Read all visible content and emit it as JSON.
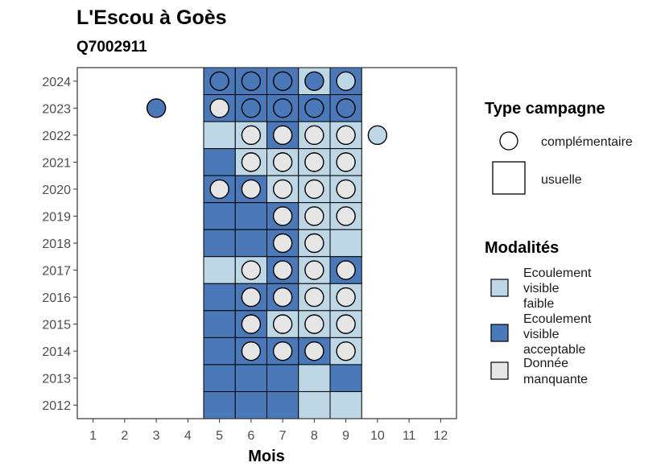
{
  "chart_data": {
    "type": "heatmap",
    "title": "L'Escou à Goès",
    "subtitle": "Q7002911",
    "xlabel": "Mois",
    "ylabel": "",
    "x_ticks": [
      "1",
      "2",
      "3",
      "4",
      "5",
      "6",
      "7",
      "8",
      "9",
      "10",
      "11",
      "12"
    ],
    "y_ticks": [
      "2012",
      "2013",
      "2014",
      "2015",
      "2016",
      "2017",
      "2018",
      "2019",
      "2020",
      "2021",
      "2022",
      "2023",
      "2024"
    ],
    "xlim": [
      0.5,
      12.5
    ],
    "ylim": [
      2011.5,
      2024.5
    ],
    "grid": false,
    "colors": {
      "Ecoulement visible faible": "#bdd7e7",
      "Ecoulement visible acceptable": "#4a78b8",
      "Donnée manquante": "#e6e6e6"
    },
    "legend_shape": {
      "title": "Type campagne",
      "items": [
        "complémentaire",
        "usuelle"
      ]
    },
    "legend_fill": {
      "title": "Modalités",
      "items": [
        {
          "label": "Ecoulement visible faible",
          "lines": [
            "Ecoulement",
            "visible",
            "faible"
          ]
        },
        {
          "label": "Ecoulement visible acceptable",
          "lines": [
            "Ecoulement",
            "visible",
            "acceptable"
          ]
        },
        {
          "label": "Donnée manquante",
          "lines": [
            "Donnée",
            "manquante"
          ]
        }
      ]
    },
    "usuelle": [
      {
        "year": 2024,
        "month": 5,
        "value": "Ecoulement visible acceptable"
      },
      {
        "year": 2024,
        "month": 6,
        "value": "Ecoulement visible acceptable"
      },
      {
        "year": 2024,
        "month": 7,
        "value": "Ecoulement visible acceptable"
      },
      {
        "year": 2024,
        "month": 8,
        "value": "Ecoulement visible faible"
      },
      {
        "year": 2024,
        "month": 9,
        "value": "Ecoulement visible acceptable"
      },
      {
        "year": 2023,
        "month": 5,
        "value": "Ecoulement visible acceptable"
      },
      {
        "year": 2023,
        "month": 6,
        "value": "Ecoulement visible acceptable"
      },
      {
        "year": 2023,
        "month": 7,
        "value": "Ecoulement visible acceptable"
      },
      {
        "year": 2023,
        "month": 8,
        "value": "Ecoulement visible acceptable"
      },
      {
        "year": 2023,
        "month": 9,
        "value": "Ecoulement visible acceptable"
      },
      {
        "year": 2022,
        "month": 5,
        "value": "Ecoulement visible faible"
      },
      {
        "year": 2022,
        "month": 6,
        "value": "Ecoulement visible faible"
      },
      {
        "year": 2022,
        "month": 7,
        "value": "Ecoulement visible acceptable"
      },
      {
        "year": 2022,
        "month": 8,
        "value": "Ecoulement visible faible"
      },
      {
        "year": 2022,
        "month": 9,
        "value": "Ecoulement visible faible"
      },
      {
        "year": 2021,
        "month": 5,
        "value": "Ecoulement visible acceptable"
      },
      {
        "year": 2021,
        "month": 6,
        "value": "Ecoulement visible faible"
      },
      {
        "year": 2021,
        "month": 7,
        "value": "Ecoulement visible faible"
      },
      {
        "year": 2021,
        "month": 8,
        "value": "Ecoulement visible faible"
      },
      {
        "year": 2021,
        "month": 9,
        "value": "Ecoulement visible faible"
      },
      {
        "year": 2020,
        "month": 5,
        "value": "Ecoulement visible acceptable"
      },
      {
        "year": 2020,
        "month": 6,
        "value": "Ecoulement visible acceptable"
      },
      {
        "year": 2020,
        "month": 7,
        "value": "Ecoulement visible faible"
      },
      {
        "year": 2020,
        "month": 8,
        "value": "Ecoulement visible faible"
      },
      {
        "year": 2020,
        "month": 9,
        "value": "Ecoulement visible faible"
      },
      {
        "year": 2019,
        "month": 5,
        "value": "Ecoulement visible acceptable"
      },
      {
        "year": 2019,
        "month": 6,
        "value": "Ecoulement visible acceptable"
      },
      {
        "year": 2019,
        "month": 7,
        "value": "Ecoulement visible acceptable"
      },
      {
        "year": 2019,
        "month": 8,
        "value": "Ecoulement visible faible"
      },
      {
        "year": 2019,
        "month": 9,
        "value": "Ecoulement visible faible"
      },
      {
        "year": 2018,
        "month": 5,
        "value": "Ecoulement visible acceptable"
      },
      {
        "year": 2018,
        "month": 6,
        "value": "Ecoulement visible acceptable"
      },
      {
        "year": 2018,
        "month": 7,
        "value": "Ecoulement visible acceptable"
      },
      {
        "year": 2018,
        "month": 8,
        "value": "Ecoulement visible faible"
      },
      {
        "year": 2018,
        "month": 9,
        "value": "Ecoulement visible faible"
      },
      {
        "year": 2017,
        "month": 5,
        "value": "Ecoulement visible faible"
      },
      {
        "year": 2017,
        "month": 6,
        "value": "Ecoulement visible faible"
      },
      {
        "year": 2017,
        "month": 7,
        "value": "Ecoulement visible acceptable"
      },
      {
        "year": 2017,
        "month": 8,
        "value": "Ecoulement visible faible"
      },
      {
        "year": 2017,
        "month": 9,
        "value": "Ecoulement visible acceptable"
      },
      {
        "year": 2016,
        "month": 5,
        "value": "Ecoulement visible acceptable"
      },
      {
        "year": 2016,
        "month": 6,
        "value": "Ecoulement visible acceptable"
      },
      {
        "year": 2016,
        "month": 7,
        "value": "Ecoulement visible acceptable"
      },
      {
        "year": 2016,
        "month": 8,
        "value": "Ecoulement visible faible"
      },
      {
        "year": 2016,
        "month": 9,
        "value": "Ecoulement visible faible"
      },
      {
        "year": 2015,
        "month": 5,
        "value": "Ecoulement visible acceptable"
      },
      {
        "year": 2015,
        "month": 6,
        "value": "Ecoulement visible acceptable"
      },
      {
        "year": 2015,
        "month": 7,
        "value": "Ecoulement visible faible"
      },
      {
        "year": 2015,
        "month": 8,
        "value": "Ecoulement visible faible"
      },
      {
        "year": 2015,
        "month": 9,
        "value": "Ecoulement visible faible"
      },
      {
        "year": 2014,
        "month": 5,
        "value": "Ecoulement visible acceptable"
      },
      {
        "year": 2014,
        "month": 6,
        "value": "Ecoulement visible acceptable"
      },
      {
        "year": 2014,
        "month": 7,
        "value": "Ecoulement visible acceptable"
      },
      {
        "year": 2014,
        "month": 8,
        "value": "Ecoulement visible acceptable"
      },
      {
        "year": 2014,
        "month": 9,
        "value": "Ecoulement visible faible"
      },
      {
        "year": 2013,
        "month": 5,
        "value": "Ecoulement visible acceptable"
      },
      {
        "year": 2013,
        "month": 6,
        "value": "Ecoulement visible acceptable"
      },
      {
        "year": 2013,
        "month": 7,
        "value": "Ecoulement visible acceptable"
      },
      {
        "year": 2013,
        "month": 8,
        "value": "Ecoulement visible faible"
      },
      {
        "year": 2013,
        "month": 9,
        "value": "Ecoulement visible acceptable"
      },
      {
        "year": 2012,
        "month": 5,
        "value": "Ecoulement visible acceptable"
      },
      {
        "year": 2012,
        "month": 6,
        "value": "Ecoulement visible acceptable"
      },
      {
        "year": 2012,
        "month": 7,
        "value": "Ecoulement visible acceptable"
      },
      {
        "year": 2012,
        "month": 8,
        "value": "Ecoulement visible faible"
      },
      {
        "year": 2012,
        "month": 9,
        "value": "Ecoulement visible faible"
      }
    ],
    "complementaire": [
      {
        "year": 2024,
        "month": 5,
        "value": "Ecoulement visible acceptable"
      },
      {
        "year": 2024,
        "month": 6,
        "value": "Ecoulement visible acceptable"
      },
      {
        "year": 2024,
        "month": 7,
        "value": "Ecoulement visible acceptable"
      },
      {
        "year": 2024,
        "month": 8,
        "value": "Ecoulement visible acceptable"
      },
      {
        "year": 2024,
        "month": 9,
        "value": "Ecoulement visible faible"
      },
      {
        "year": 2023,
        "month": 3,
        "value": "Ecoulement visible acceptable"
      },
      {
        "year": 2023,
        "month": 5,
        "value": "Donnée manquante"
      },
      {
        "year": 2023,
        "month": 6,
        "value": "Ecoulement visible acceptable"
      },
      {
        "year": 2023,
        "month": 7,
        "value": "Ecoulement visible acceptable"
      },
      {
        "year": 2023,
        "month": 8,
        "value": "Ecoulement visible acceptable"
      },
      {
        "year": 2023,
        "month": 9,
        "value": "Ecoulement visible acceptable"
      },
      {
        "year": 2022,
        "month": 6,
        "value": "Donnée manquante"
      },
      {
        "year": 2022,
        "month": 7,
        "value": "Donnée manquante"
      },
      {
        "year": 2022,
        "month": 8,
        "value": "Donnée manquante"
      },
      {
        "year": 2022,
        "month": 9,
        "value": "Donnée manquante"
      },
      {
        "year": 2022,
        "month": 10,
        "value": "Ecoulement visible faible"
      },
      {
        "year": 2021,
        "month": 6,
        "value": "Donnée manquante"
      },
      {
        "year": 2021,
        "month": 7,
        "value": "Donnée manquante"
      },
      {
        "year": 2021,
        "month": 8,
        "value": "Donnée manquante"
      },
      {
        "year": 2021,
        "month": 9,
        "value": "Donnée manquante"
      },
      {
        "year": 2020,
        "month": 5,
        "value": "Donnée manquante"
      },
      {
        "year": 2020,
        "month": 6,
        "value": "Donnée manquante"
      },
      {
        "year": 2020,
        "month": 7,
        "value": "Donnée manquante"
      },
      {
        "year": 2020,
        "month": 8,
        "value": "Donnée manquante"
      },
      {
        "year": 2020,
        "month": 9,
        "value": "Donnée manquante"
      },
      {
        "year": 2019,
        "month": 7,
        "value": "Donnée manquante"
      },
      {
        "year": 2019,
        "month": 8,
        "value": "Donnée manquante"
      },
      {
        "year": 2019,
        "month": 9,
        "value": "Donnée manquante"
      },
      {
        "year": 2018,
        "month": 7,
        "value": "Donnée manquante"
      },
      {
        "year": 2018,
        "month": 8,
        "value": "Donnée manquante"
      },
      {
        "year": 2017,
        "month": 6,
        "value": "Donnée manquante"
      },
      {
        "year": 2017,
        "month": 7,
        "value": "Donnée manquante"
      },
      {
        "year": 2017,
        "month": 8,
        "value": "Donnée manquante"
      },
      {
        "year": 2017,
        "month": 9,
        "value": "Donnée manquante"
      },
      {
        "year": 2016,
        "month": 6,
        "value": "Donnée manquante"
      },
      {
        "year": 2016,
        "month": 7,
        "value": "Donnée manquante"
      },
      {
        "year": 2016,
        "month": 8,
        "value": "Donnée manquante"
      },
      {
        "year": 2016,
        "month": 9,
        "value": "Donnée manquante"
      },
      {
        "year": 2015,
        "month": 6,
        "value": "Donnée manquante"
      },
      {
        "year": 2015,
        "month": 7,
        "value": "Donnée manquante"
      },
      {
        "year": 2015,
        "month": 8,
        "value": "Donnée manquante"
      },
      {
        "year": 2015,
        "month": 9,
        "value": "Donnée manquante"
      },
      {
        "year": 2014,
        "month": 6,
        "value": "Donnée manquante"
      },
      {
        "year": 2014,
        "month": 7,
        "value": "Donnée manquante"
      },
      {
        "year": 2014,
        "month": 8,
        "value": "Donnée manquante"
      },
      {
        "year": 2014,
        "month": 9,
        "value": "Donnée manquante"
      }
    ]
  }
}
